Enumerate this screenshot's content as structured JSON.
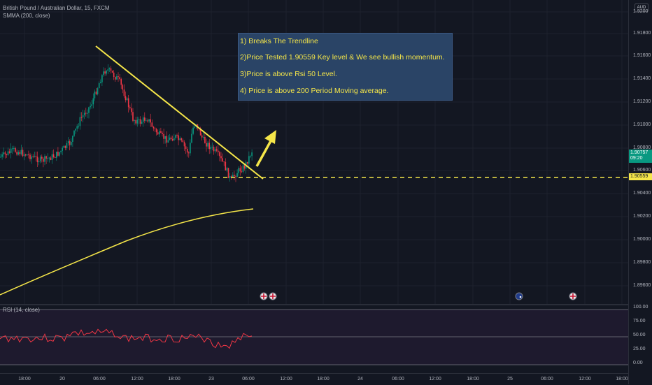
{
  "header": {
    "symbol_title": "British Pound / Australian Dollar, 15, FXCM",
    "indicator_label": "SMMA (200, close)"
  },
  "annotation": {
    "line1": "1) Breaks The Trendline",
    "line2": "2)Price Tested 1.90559 Key level & We see bullish momentum.",
    "line3": "3)Price is above Rsi 50 Level.",
    "line4": "4) Price is above 200 Period Moving average."
  },
  "price_scale": {
    "currency": "AUD",
    "ticks": [
      "1.9200",
      "1.91800",
      "1.91600",
      "1.91400",
      "1.91200",
      "1.91000",
      "1.90800",
      "1.90600",
      "1.90400",
      "1.90200",
      "1.90000",
      "1.89800",
      "1.89600"
    ],
    "current_price": "1.90757",
    "countdown": "09:20",
    "key_level": "1.90559",
    "colors": {
      "current_price": "#089981",
      "key_level": "#f5e649"
    }
  },
  "rsi": {
    "label": "RSI (14, close)",
    "ticks": [
      "100.00",
      "75.00",
      "50.00",
      "25.00",
      "0.00"
    ]
  },
  "time_axis": {
    "labels": [
      "18:00",
      "20",
      "06:00",
      "12:00",
      "18:00",
      "23",
      "06:00",
      "12:00",
      "18:00",
      "24",
      "06:00",
      "12:00",
      "18:00",
      "25",
      "06:00",
      "12:00",
      "18:00"
    ]
  },
  "colors": {
    "background": "#131722",
    "up_candle": "#089981",
    "down_candle": "#f23645",
    "trendline": "#f5e649",
    "smma": "#f5e649",
    "rsi_line": "#f23645"
  }
}
